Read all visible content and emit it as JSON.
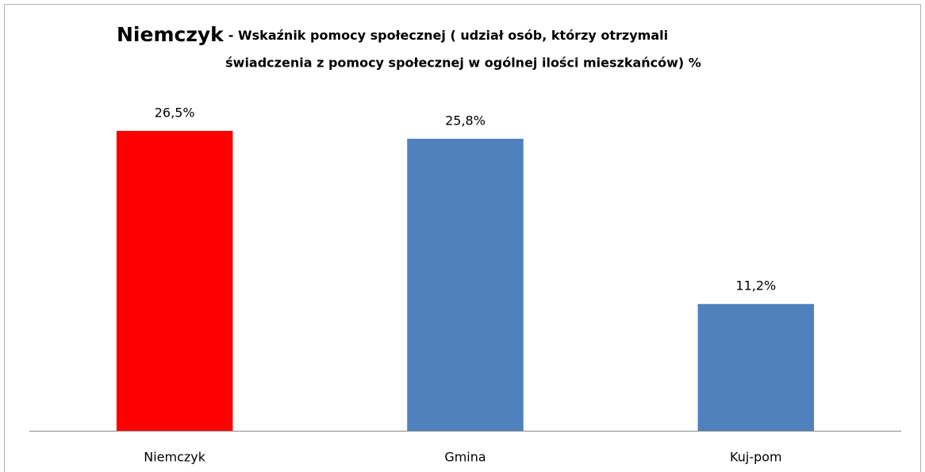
{
  "chart_data": {
    "type": "bar",
    "title": "Niemczyk",
    "subtitle": [
      "- Wskaźnik pomocy społecznej ( udział osób, którzy otrzymali",
      "świadczenia z pomocy społecznej  w ogólnej ilości mieszkańców) %"
    ],
    "categories": [
      "Niemczyk",
      "Gmina",
      "Kuj-pom"
    ],
    "values": [
      26.5,
      25.8,
      11.2
    ],
    "value_labels": [
      "26,5%",
      "25,8%",
      "11,2%"
    ],
    "colors": [
      "#ff0000",
      "#4f81bd",
      "#4f81bd"
    ],
    "ylim": [
      0,
      30
    ]
  }
}
